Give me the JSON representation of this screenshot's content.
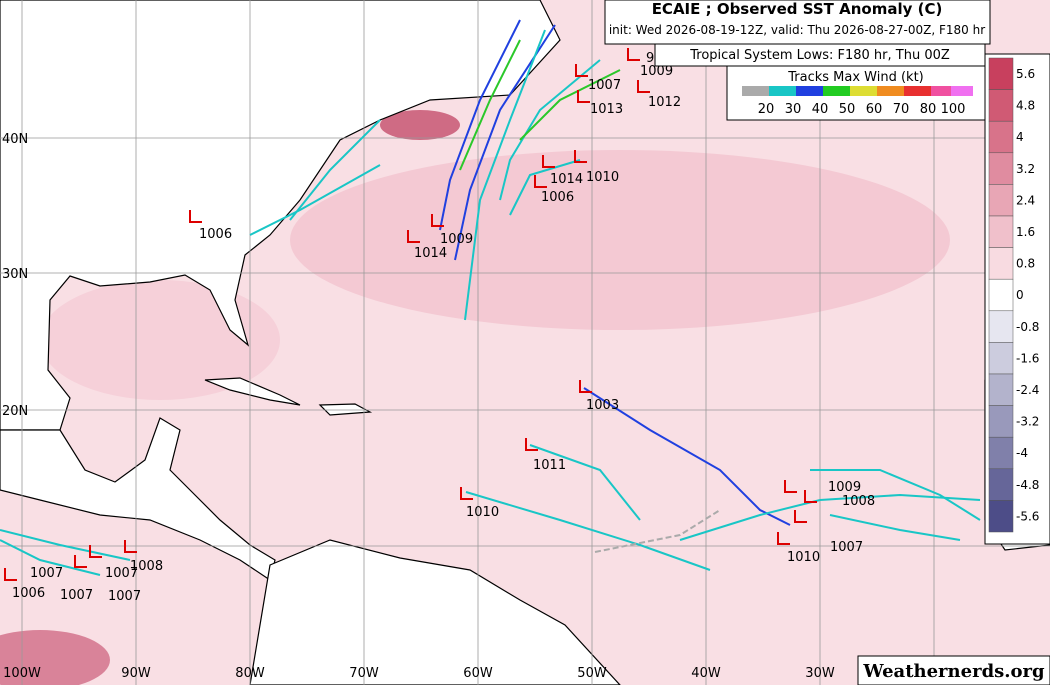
{
  "header": {
    "title": "ECAIE ; Observed SST Anomaly (C)",
    "init": "init: Wed 2026-08-19-12Z, valid: Thu 2026-08-27-00Z, F180 hr",
    "lows_title": "Tropical System Lows: F180 hr, Thu 00Z"
  },
  "tracks_legend": {
    "title": "Tracks Max Wind (kt)",
    "labels": [
      "20",
      "30",
      "40",
      "50",
      "60",
      "70",
      "80",
      "100"
    ]
  },
  "colorbar": {
    "labels": [
      "5.6",
      "4.8",
      "4",
      "3.2",
      "2.4",
      "1.6",
      "0.8",
      "0",
      "-0.8",
      "-1.6",
      "-2.4",
      "-3.2",
      "-4",
      "-4.8",
      "-5.6"
    ]
  },
  "lat_labels": [
    "40N",
    "30N",
    "20N"
  ],
  "lon_labels": [
    "100W",
    "90W",
    "80W",
    "70W",
    "60W",
    "50W",
    "40W",
    "30W"
  ],
  "lows": [
    "1009",
    "1007",
    "1012",
    "1013",
    "1010",
    "1014",
    "1006",
    "1009",
    "1014",
    "1006",
    "1003",
    "1011",
    "1010",
    "1008",
    "1007",
    "1007",
    "1006",
    "1007",
    "1007",
    "1010",
    "1009",
    "1008",
    "1007",
    "9"
  ],
  "watermark": "Weathernerds.org"
}
